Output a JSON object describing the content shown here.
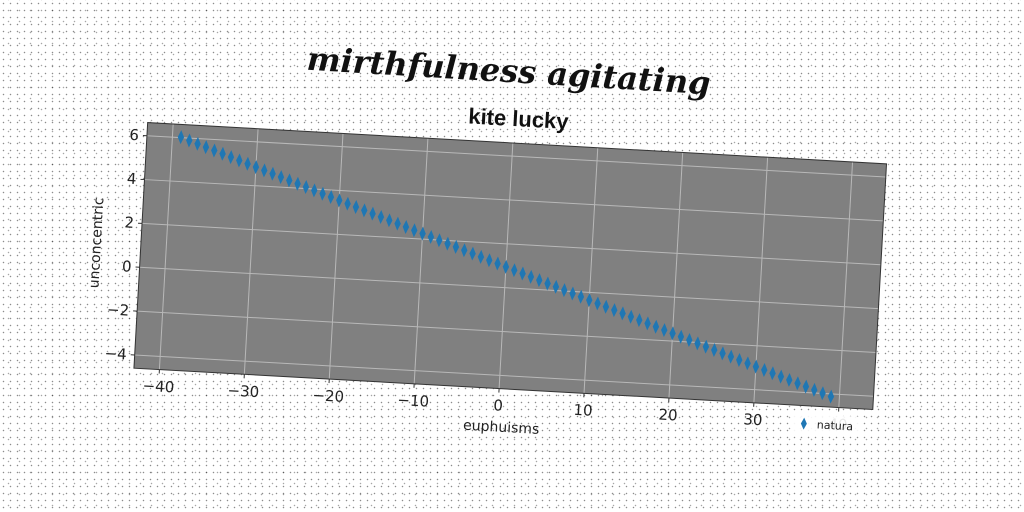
{
  "figure": {
    "suptitle": "mirthfulness agitating"
  },
  "chart_data": {
    "type": "scatter",
    "title": "kite lucky",
    "xlabel": "euphuisms",
    "ylabel": "unconcentric",
    "xlim": [
      -43,
      44
    ],
    "ylim": [
      -4.6,
      6.6
    ],
    "xticks": [
      -40,
      -30,
      -20,
      -10,
      0,
      10,
      20,
      30,
      40
    ],
    "yticks": [
      -4,
      -2,
      0,
      2,
      4,
      6
    ],
    "xtick_labels": [
      "−40",
      "−30",
      "−20",
      "−10",
      "0",
      "10",
      "20",
      "30",
      "40"
    ],
    "ytick_labels": [
      "−4",
      "−2",
      "0",
      "2",
      "4",
      "6"
    ],
    "grid": true,
    "legend_position": "bottom-right",
    "background_color": "#808080",
    "series": [
      {
        "name": "natura",
        "color": "#1f77b4",
        "marker": "thin_diamond",
        "x_start": -39,
        "x_step": 1,
        "count": 79,
        "slope": -0.13,
        "intercept": 0.95
      }
    ]
  }
}
